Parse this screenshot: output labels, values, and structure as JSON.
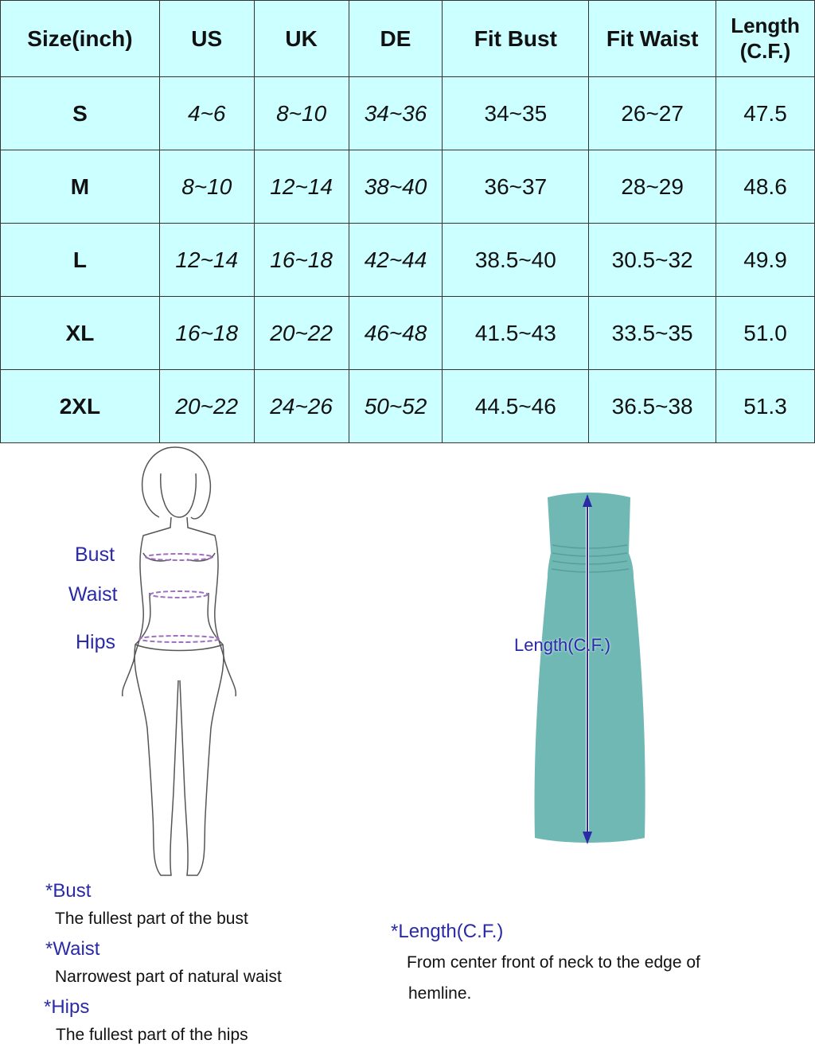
{
  "table": {
    "headers": [
      "Size(inch)",
      "US",
      "UK",
      "DE",
      "Fit Bust",
      "Fit Waist",
      "Length\n(C.F.)"
    ],
    "rows": [
      [
        "S",
        "4~6",
        "8~10",
        "34~36",
        "34~35",
        "26~27",
        "47.5"
      ],
      [
        "M",
        "8~10",
        "12~14",
        "38~40",
        "36~37",
        "28~29",
        "48.6"
      ],
      [
        "L",
        "12~14",
        "16~18",
        "42~44",
        "38.5~40",
        "30.5~32",
        "49.9"
      ],
      [
        "XL",
        "16~18",
        "20~22",
        "46~48",
        "41.5~43",
        "33.5~35",
        "51.0"
      ],
      [
        "2XL",
        "20~22",
        "24~26",
        "50~52",
        "44.5~46",
        "36.5~38",
        "51.3"
      ]
    ]
  },
  "figure": {
    "bust": "Bust",
    "waist": "Waist",
    "hips": "Hips"
  },
  "dress": {
    "label": "Length(C.F.)",
    "color": "#6fb8b4"
  },
  "notes": {
    "bust_title": "*Bust",
    "bust_desc": "The fullest part of the bust",
    "waist_title": "*Waist",
    "waist_desc": "Narrowest part of natural waist",
    "hips_title": "*Hips",
    "hips_desc": "The fullest part of the hips",
    "length_title": "*Length(C.F.)",
    "length_desc1": "From center front of neck to the edge of",
    "length_desc2": "hemline."
  },
  "colors": {
    "table_bg": "#ccffff",
    "label_blue": "#2a2aa8"
  }
}
